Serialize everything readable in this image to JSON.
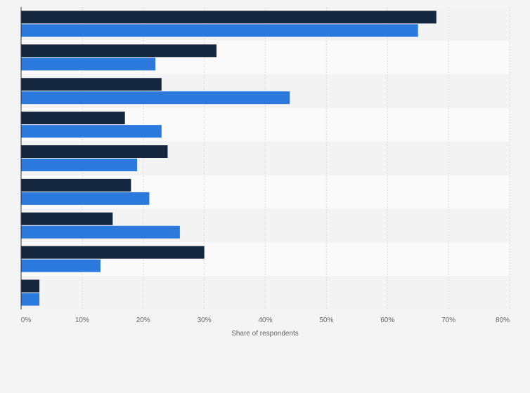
{
  "chart_data": {
    "type": "bar",
    "orientation": "horizontal",
    "categories": [
      "",
      "",
      "",
      "",
      "",
      "",
      "",
      "",
      ""
    ],
    "series": [
      {
        "values": [
          68,
          32,
          23,
          17,
          24,
          18,
          15,
          30,
          3
        ],
        "color": "#14273f"
      },
      {
        "values": [
          65,
          22,
          44,
          23,
          19,
          21,
          26,
          13,
          3
        ],
        "color": "#2b79dd"
      }
    ],
    "xlabel": "Share of respondents",
    "xlim": [
      0,
      80
    ],
    "xticks": [
      "0%",
      "10%",
      "20%",
      "30%",
      "40%",
      "50%",
      "60%",
      "70%",
      "80%"
    ],
    "grid": true,
    "legend": "none"
  }
}
